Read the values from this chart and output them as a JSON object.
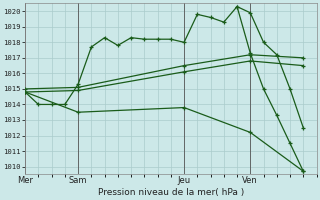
{
  "bg_color": "#cce8e8",
  "grid_color": "#aacccc",
  "line_color": "#1a5c1a",
  "xlabel": "Pression niveau de la mer( hPa )",
  "xtick_labels": [
    "Mer",
    "Sam",
    "Jeu",
    "Ven"
  ],
  "xtick_positions": [
    0,
    4,
    12,
    17
  ],
  "vline_positions": [
    0,
    4,
    12,
    17
  ],
  "xlim": [
    0,
    22
  ],
  "ylim": [
    1009.5,
    1020.5
  ],
  "yticks": [
    1010,
    1011,
    1012,
    1013,
    1014,
    1015,
    1016,
    1017,
    1018,
    1019,
    1020
  ],
  "jagged_x": [
    0,
    1,
    2,
    3,
    4,
    5,
    6,
    7,
    8,
    9,
    10,
    11,
    12,
    13,
    14,
    15,
    16,
    17,
    18,
    19,
    20,
    21
  ],
  "jagged_y": [
    1014.8,
    1014.0,
    1014.0,
    1014.0,
    1015.3,
    1017.7,
    1018.3,
    1017.8,
    1018.3,
    1018.2,
    1018.2,
    1018.2,
    1018.0,
    1019.8,
    1019.6,
    1019.3,
    1020.3,
    1019.9,
    1018.0,
    1017.2,
    1015.0,
    1012.5
  ],
  "smooth_upper_x": [
    0,
    4,
    12,
    17,
    21
  ],
  "smooth_upper_y": [
    1015.0,
    1015.1,
    1016.5,
    1017.2,
    1017.0
  ],
  "smooth_lower_x": [
    0,
    4,
    12,
    17,
    21
  ],
  "smooth_lower_y": [
    1014.8,
    1014.9,
    1016.1,
    1016.8,
    1016.5
  ],
  "diag_x": [
    0,
    4,
    12,
    17,
    21
  ],
  "diag_y": [
    1014.8,
    1013.5,
    1013.8,
    1012.2,
    1009.7
  ],
  "descent_x": [
    16,
    17,
    18,
    19,
    20,
    21
  ],
  "descent_y": [
    1020.3,
    1017.3,
    1015.0,
    1013.3,
    1011.5,
    1009.7
  ]
}
